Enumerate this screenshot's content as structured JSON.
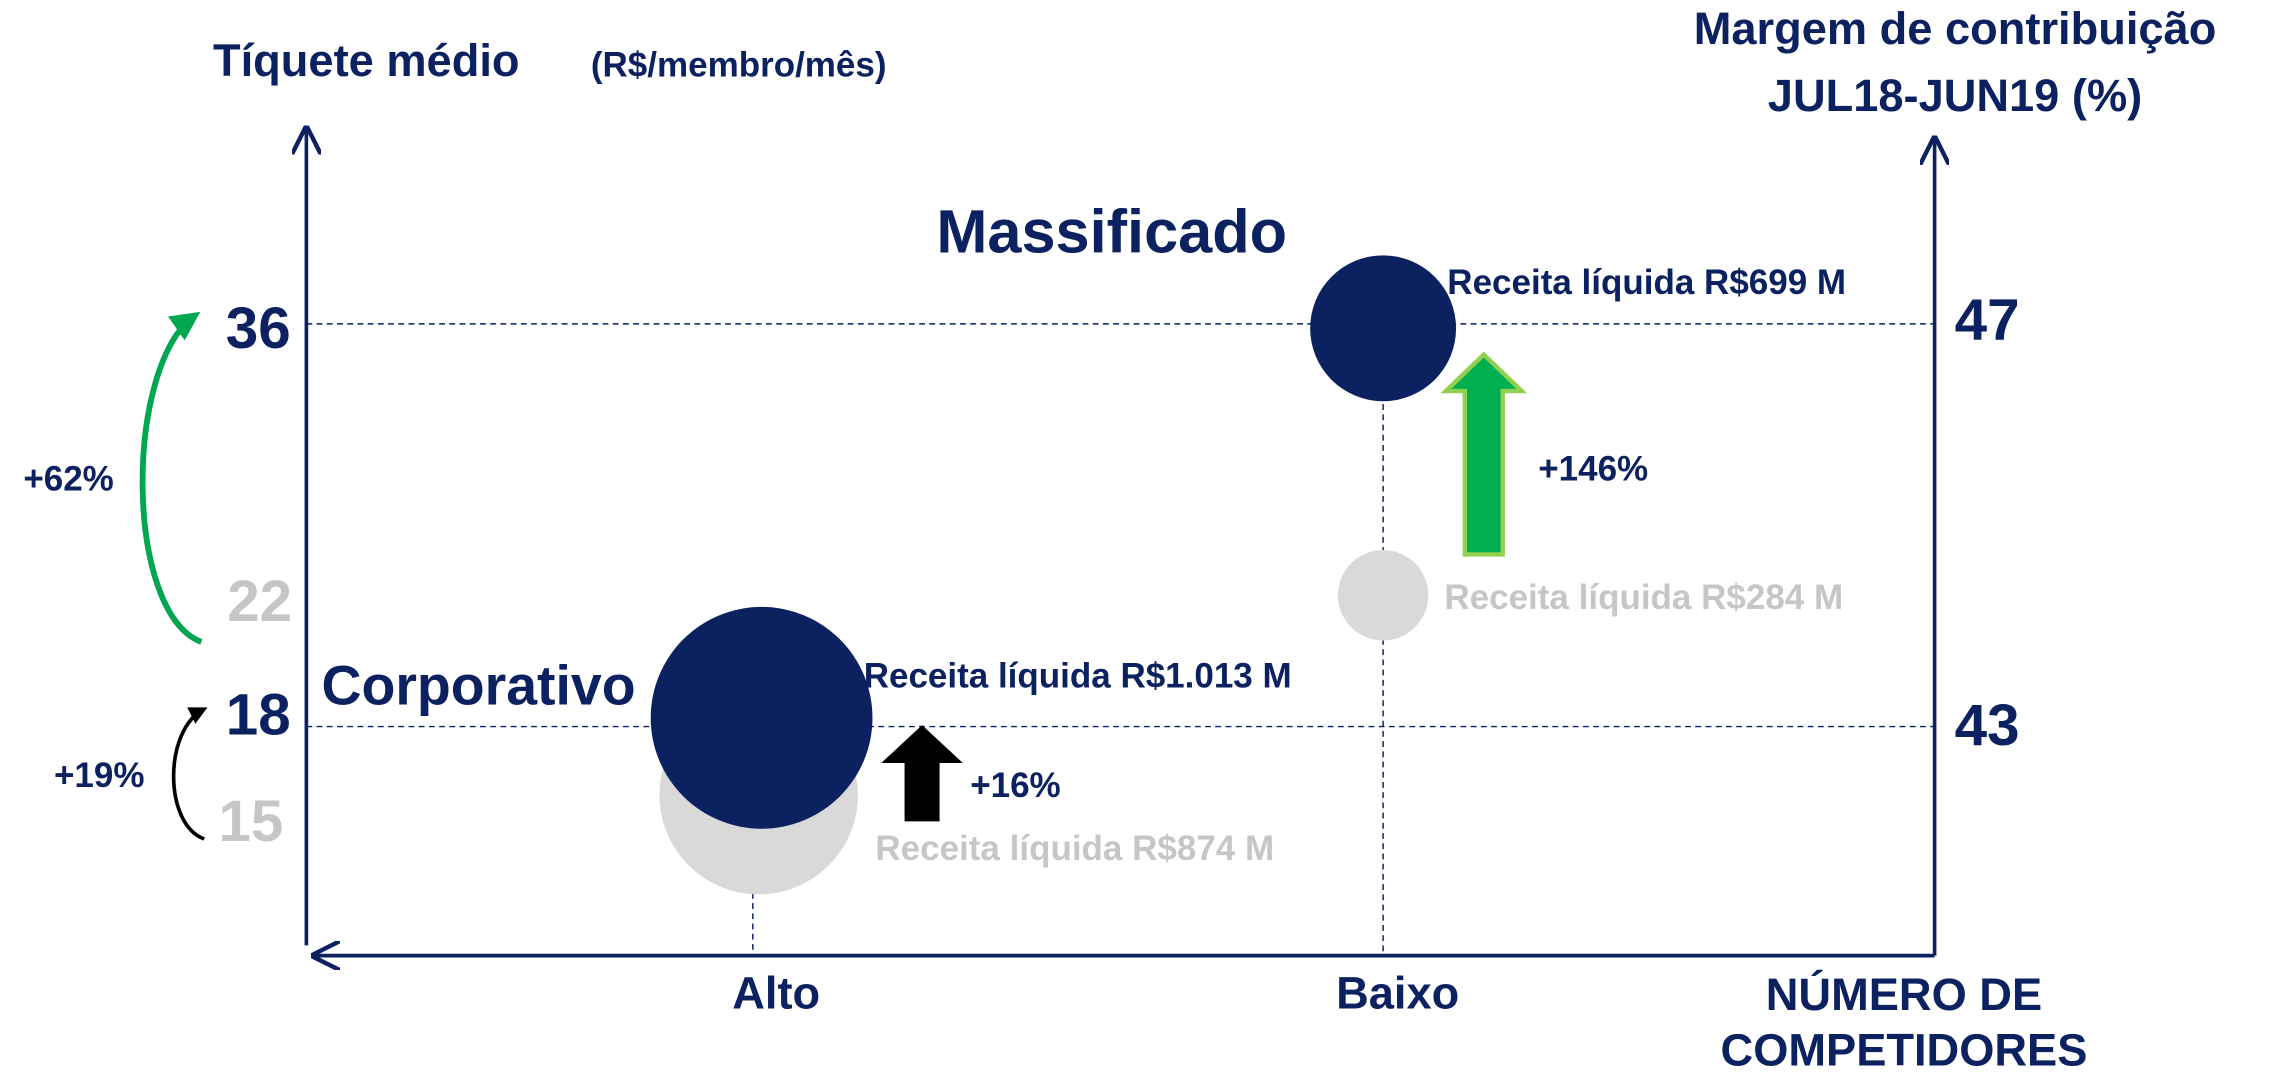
{
  "y_axis": {
    "title": "Tíquete médio",
    "unit": "(R$/membro/mês)"
  },
  "y2_axis": {
    "title_lines": [
      "Margem de contribuição",
      "JUL18-JUN19 (%)"
    ]
  },
  "x_axis": {
    "title_lines": [
      "NÚMERO DE",
      "COMPETIDORES"
    ],
    "categories": [
      "Alto",
      "Baixo"
    ]
  },
  "segments": [
    {
      "name": "Massificado",
      "ticket_after": "36",
      "ticket_before": "22",
      "ticket_change": "+62%",
      "margin": "47",
      "revenue_after": "Receita líquida R$699 M",
      "revenue_before": "Receita líquida R$284 M",
      "revenue_change": "+146%"
    },
    {
      "name": "Corporativo",
      "ticket_after": "18",
      "ticket_before": "15",
      "ticket_change": "+19%",
      "margin": "43",
      "revenue_after": "Receita líquida R$1.013 M",
      "revenue_before": "Receita líquida R$874 M",
      "revenue_change": "+16%"
    }
  ]
}
